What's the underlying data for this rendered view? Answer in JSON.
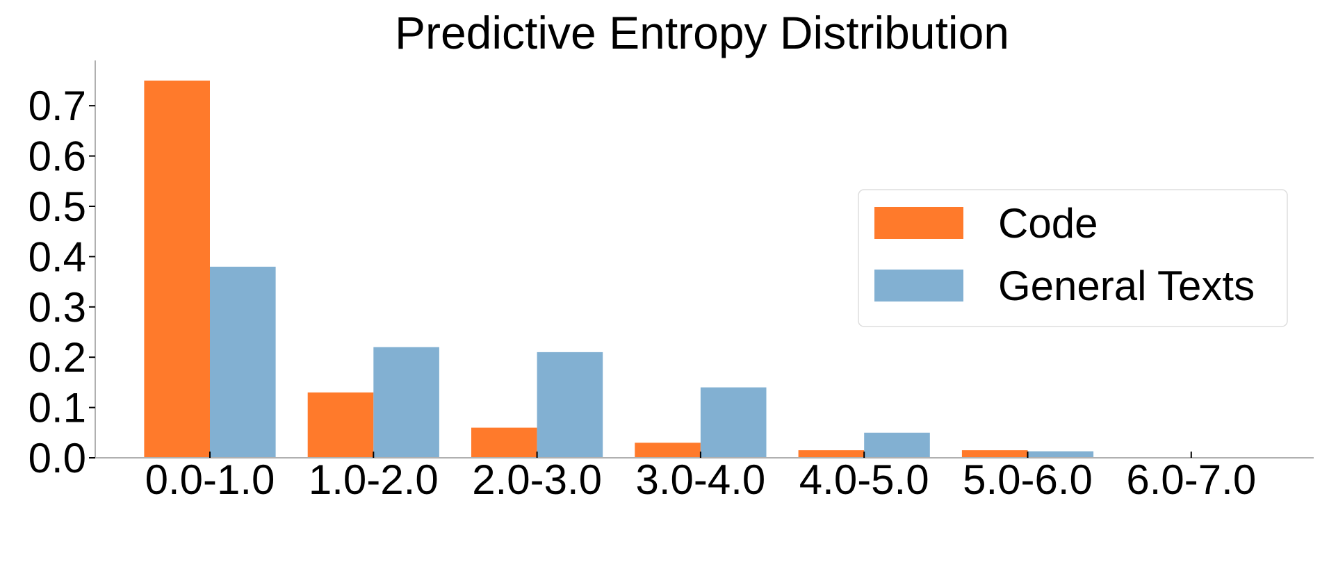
{
  "chart_data": {
    "type": "bar",
    "title": "Predictive Entropy Distribution",
    "xlabel": "",
    "ylabel": "",
    "categories": [
      "0.0-1.0",
      "1.0-2.0",
      "2.0-3.0",
      "3.0-4.0",
      "4.0-5.0",
      "5.0-6.0",
      "6.0-7.0"
    ],
    "series": [
      {
        "name": "Code",
        "color": "#ff7a2b",
        "values": [
          0.75,
          0.13,
          0.06,
          0.03,
          0.015,
          0.015,
          0.0
        ]
      },
      {
        "name": "General Texts",
        "color": "#82b0d2",
        "values": [
          0.38,
          0.22,
          0.21,
          0.14,
          0.05,
          0.013,
          0.0
        ]
      }
    ],
    "ylim": [
      0,
      0.79
    ],
    "yticks": [
      "0.0",
      "0.1",
      "0.2",
      "0.3",
      "0.4",
      "0.5",
      "0.6",
      "0.7"
    ],
    "grid": false,
    "legend_position": "right"
  }
}
